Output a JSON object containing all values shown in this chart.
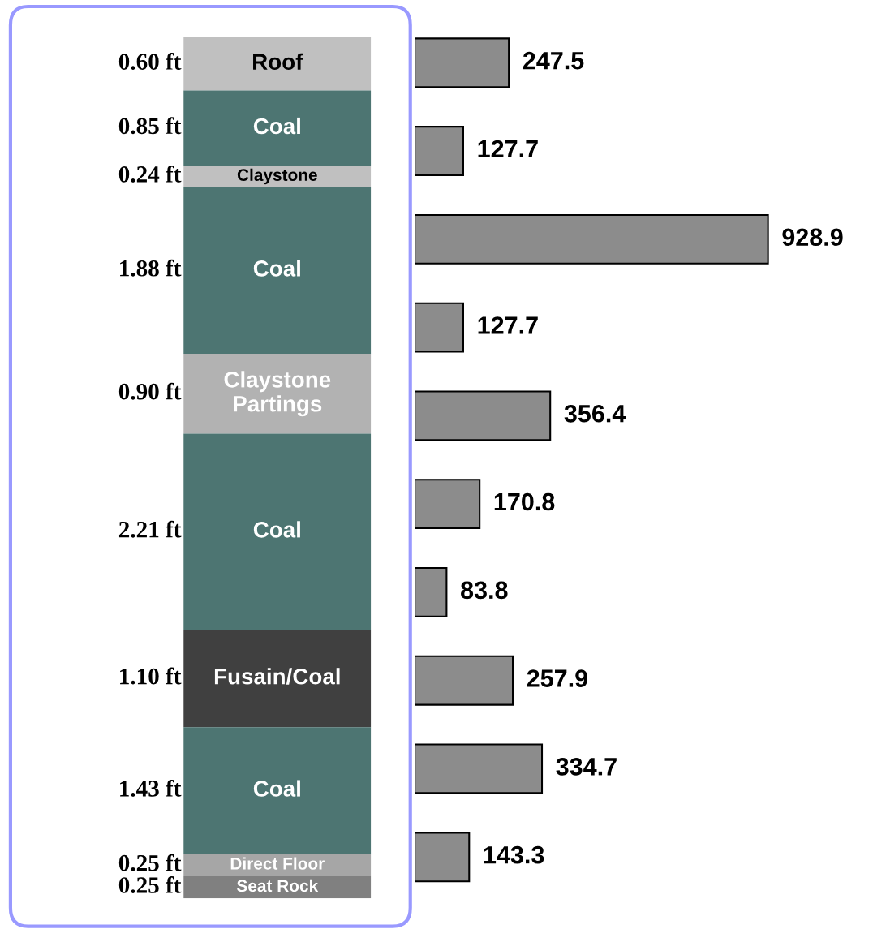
{
  "chart_data": [
    {
      "type": "other",
      "categories": [
        "Roof",
        "Coal",
        "Claystone",
        "Coal",
        "Claystone\nPartings",
        "Coal",
        "Fusain/Coal",
        "Coal",
        "Direct Floor",
        "Seat Rock"
      ],
      "values": [
        0.6,
        0.85,
        0.24,
        1.88,
        0.9,
        2.21,
        1.1,
        1.43,
        0.25,
        0.25
      ],
      "value_labels": [
        "0.60 ft",
        "0.85 ft",
        "0.24 ft",
        "1.88 ft",
        "0.90 ft",
        "2.21 ft",
        "1.10 ft",
        "1.43 ft",
        "0.25 ft",
        "0.25 ft"
      ],
      "colors": [
        "#c0c0c0",
        "#4d7572",
        "#c0c0c0",
        "#4d7572",
        "#b2b2b2",
        "#4d7572",
        "#404040",
        "#4d7572",
        "#a6a6a6",
        "#808080"
      ]
    },
    {
      "type": "bar",
      "orientation": "horizontal",
      "data_labels": true,
      "color": "#8c8c8c",
      "categories": [
        null,
        null,
        null,
        null,
        null,
        null,
        null,
        null,
        null,
        null
      ],
      "values": [
        247.5,
        127.7,
        928.9,
        127.7,
        356.4,
        170.8,
        83.8,
        257.9,
        334.7,
        143.3
      ]
    }
  ]
}
